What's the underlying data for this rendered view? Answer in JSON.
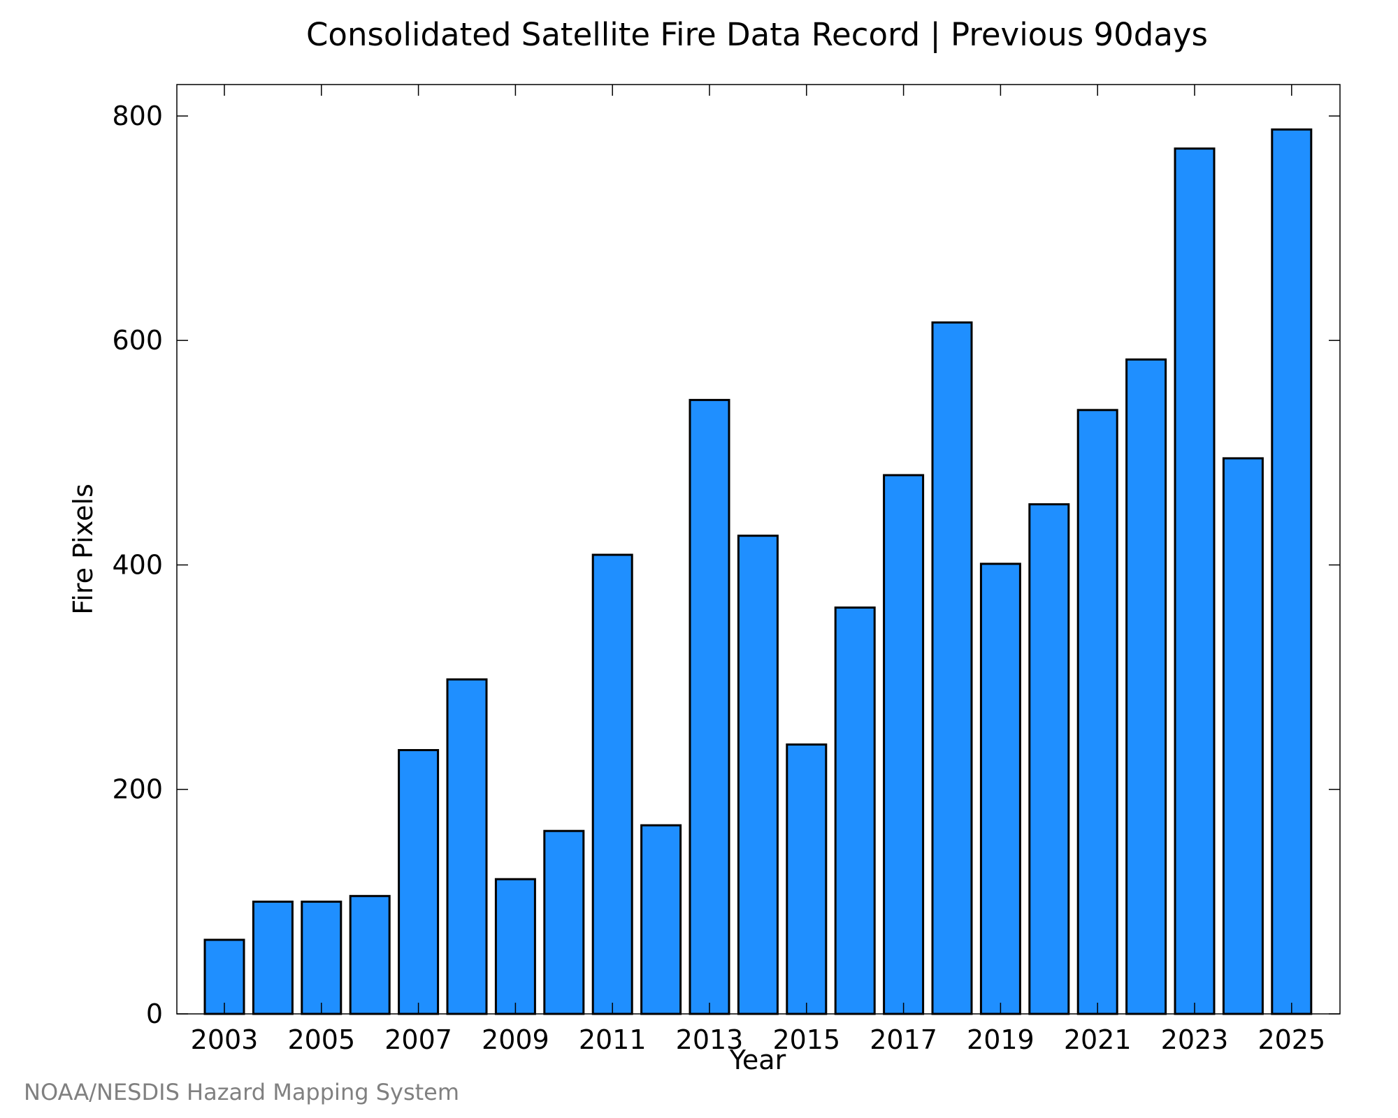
{
  "chart_data": {
    "type": "bar",
    "title": "Consolidated Satellite Fire Data Record | Previous 90days",
    "xlabel": "Year",
    "ylabel": "Fire Pixels",
    "credit": "NOAA/NESDIS Hazard Mapping System",
    "categories": [
      "2003",
      "2004",
      "2005",
      "2006",
      "2007",
      "2008",
      "2009",
      "2010",
      "2011",
      "2012",
      "2013",
      "2014",
      "2015",
      "2016",
      "2017",
      "2018",
      "2019",
      "2020",
      "2021",
      "2022",
      "2023",
      "2024",
      "2025"
    ],
    "x_tick_labels": [
      "2003",
      "2005",
      "2007",
      "2009",
      "2011",
      "2013",
      "2015",
      "2017",
      "2019",
      "2021",
      "2023",
      "2025"
    ],
    "y_ticks": [
      0,
      200,
      400,
      600,
      800
    ],
    "y_tick_labels": [
      "0",
      "200",
      "400",
      "600",
      "800"
    ],
    "values": [
      66,
      100,
      100,
      105,
      235,
      298,
      120,
      163,
      409,
      168,
      547,
      426,
      240,
      362,
      480,
      616,
      401,
      454,
      538,
      583,
      771,
      495,
      788
    ],
    "ylim": [
      0,
      828
    ],
    "grid": false,
    "legend": "none",
    "bar_color": "#1f8fff",
    "bar_edge_color": "#000000"
  }
}
